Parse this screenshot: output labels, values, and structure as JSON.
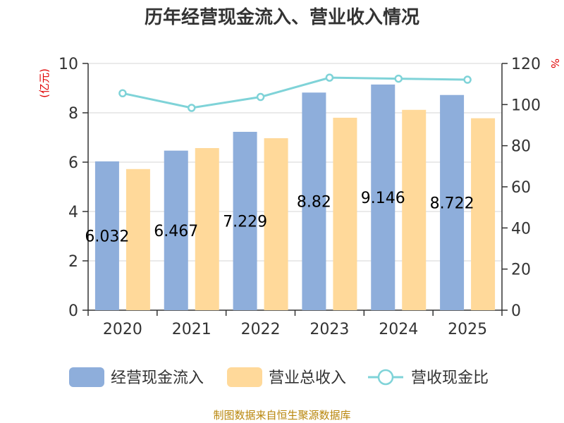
{
  "chart_data": {
    "type": "bar",
    "title": "历年经营现金流入、营业收入情况",
    "categories": [
      "2020",
      "2021",
      "2022",
      "2023",
      "2024",
      "2025"
    ],
    "y_left_unit": "(亿元)",
    "y_right_unit": "%",
    "y_left_lim": [
      0,
      10
    ],
    "y_left_ticks": [
      "0",
      "2",
      "4",
      "6",
      "8",
      "10"
    ],
    "y_right_lim": [
      0,
      120
    ],
    "y_right_ticks": [
      "0",
      "20",
      "40",
      "60",
      "80",
      "100",
      "120"
    ],
    "grid": true,
    "legend_position": "bottom",
    "series": [
      {
        "name": "经营现金流入",
        "kind": "bar",
        "axis": "left",
        "color": "#8eaedb",
        "values": [
          6.032,
          6.467,
          7.229,
          8.82,
          9.146,
          8.722
        ],
        "labels": [
          "6.032",
          "6.467",
          "7.229",
          "8.82",
          "9.146",
          "8.722"
        ]
      },
      {
        "name": "营业总收入",
        "kind": "bar",
        "axis": "left",
        "color": "#ffd99a",
        "values": [
          5.72,
          6.57,
          6.97,
          7.8,
          8.12,
          7.78
        ]
      },
      {
        "name": "营收现金比",
        "kind": "line",
        "axis": "right",
        "color": "#7fd3d8",
        "values": [
          105.5,
          98.4,
          103.7,
          113.1,
          112.6,
          112.1
        ]
      }
    ]
  },
  "footer": {
    "text": "制图数据来自恒生聚源数据库"
  }
}
